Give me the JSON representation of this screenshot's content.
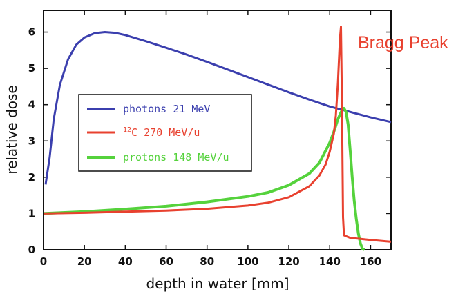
{
  "chart_data": {
    "type": "line",
    "xlabel": "depth in water [mm]",
    "ylabel": "relative dose",
    "xlim": [
      0,
      170
    ],
    "ylim": [
      0,
      6.6
    ],
    "xticks": [
      0,
      20,
      40,
      60,
      80,
      100,
      120,
      140,
      160
    ],
    "yticks": [
      0,
      1,
      2,
      3,
      4,
      5,
      6
    ],
    "grid": false,
    "legend_position": "middle-left",
    "annotation": "Bragg Peak",
    "annotation_color": "#e8412f",
    "series": [
      {
        "name": "photons 21 MeV",
        "label_prefix": "",
        "label_sup": "",
        "color": "#3b3fae",
        "x": [
          1,
          3,
          5,
          8,
          12,
          16,
          20,
          25,
          30,
          35,
          40,
          50,
          60,
          70,
          80,
          90,
          100,
          110,
          120,
          130,
          140,
          150,
          160,
          170
        ],
        "y": [
          1.8,
          2.55,
          3.6,
          4.55,
          5.25,
          5.65,
          5.85,
          5.97,
          6.0,
          5.98,
          5.92,
          5.75,
          5.57,
          5.38,
          5.18,
          4.97,
          4.76,
          4.55,
          4.34,
          4.14,
          3.95,
          3.8,
          3.65,
          3.52
        ]
      },
      {
        "name": "C 270 MeV/u",
        "label_prefix": "",
        "label_sup": "12",
        "color": "#e8412f",
        "x": [
          0,
          20,
          40,
          60,
          80,
          100,
          110,
          120,
          130,
          135,
          138,
          140,
          142,
          143,
          144,
          145,
          145.5,
          146,
          146.5,
          147,
          150,
          160,
          170
        ],
        "y": [
          1.0,
          1.02,
          1.05,
          1.08,
          1.13,
          1.22,
          1.3,
          1.45,
          1.75,
          2.05,
          2.35,
          2.7,
          3.2,
          3.7,
          4.6,
          5.8,
          6.15,
          4.0,
          0.9,
          0.4,
          0.33,
          0.27,
          0.22
        ]
      },
      {
        "name": "protons 148 MeV/u",
        "label_prefix": "",
        "label_sup": "",
        "color": "#55d23c",
        "x": [
          0,
          20,
          40,
          60,
          80,
          100,
          110,
          120,
          130,
          135,
          140,
          142,
          144,
          146,
          147,
          148,
          149,
          150,
          151,
          152,
          153,
          154,
          155,
          156,
          157
        ],
        "y": [
          1.0,
          1.05,
          1.12,
          1.2,
          1.32,
          1.47,
          1.58,
          1.78,
          2.1,
          2.4,
          2.95,
          3.25,
          3.6,
          3.85,
          3.9,
          3.8,
          3.45,
          2.75,
          2.0,
          1.35,
          0.85,
          0.45,
          0.18,
          0.03,
          0.0
        ]
      }
    ]
  }
}
